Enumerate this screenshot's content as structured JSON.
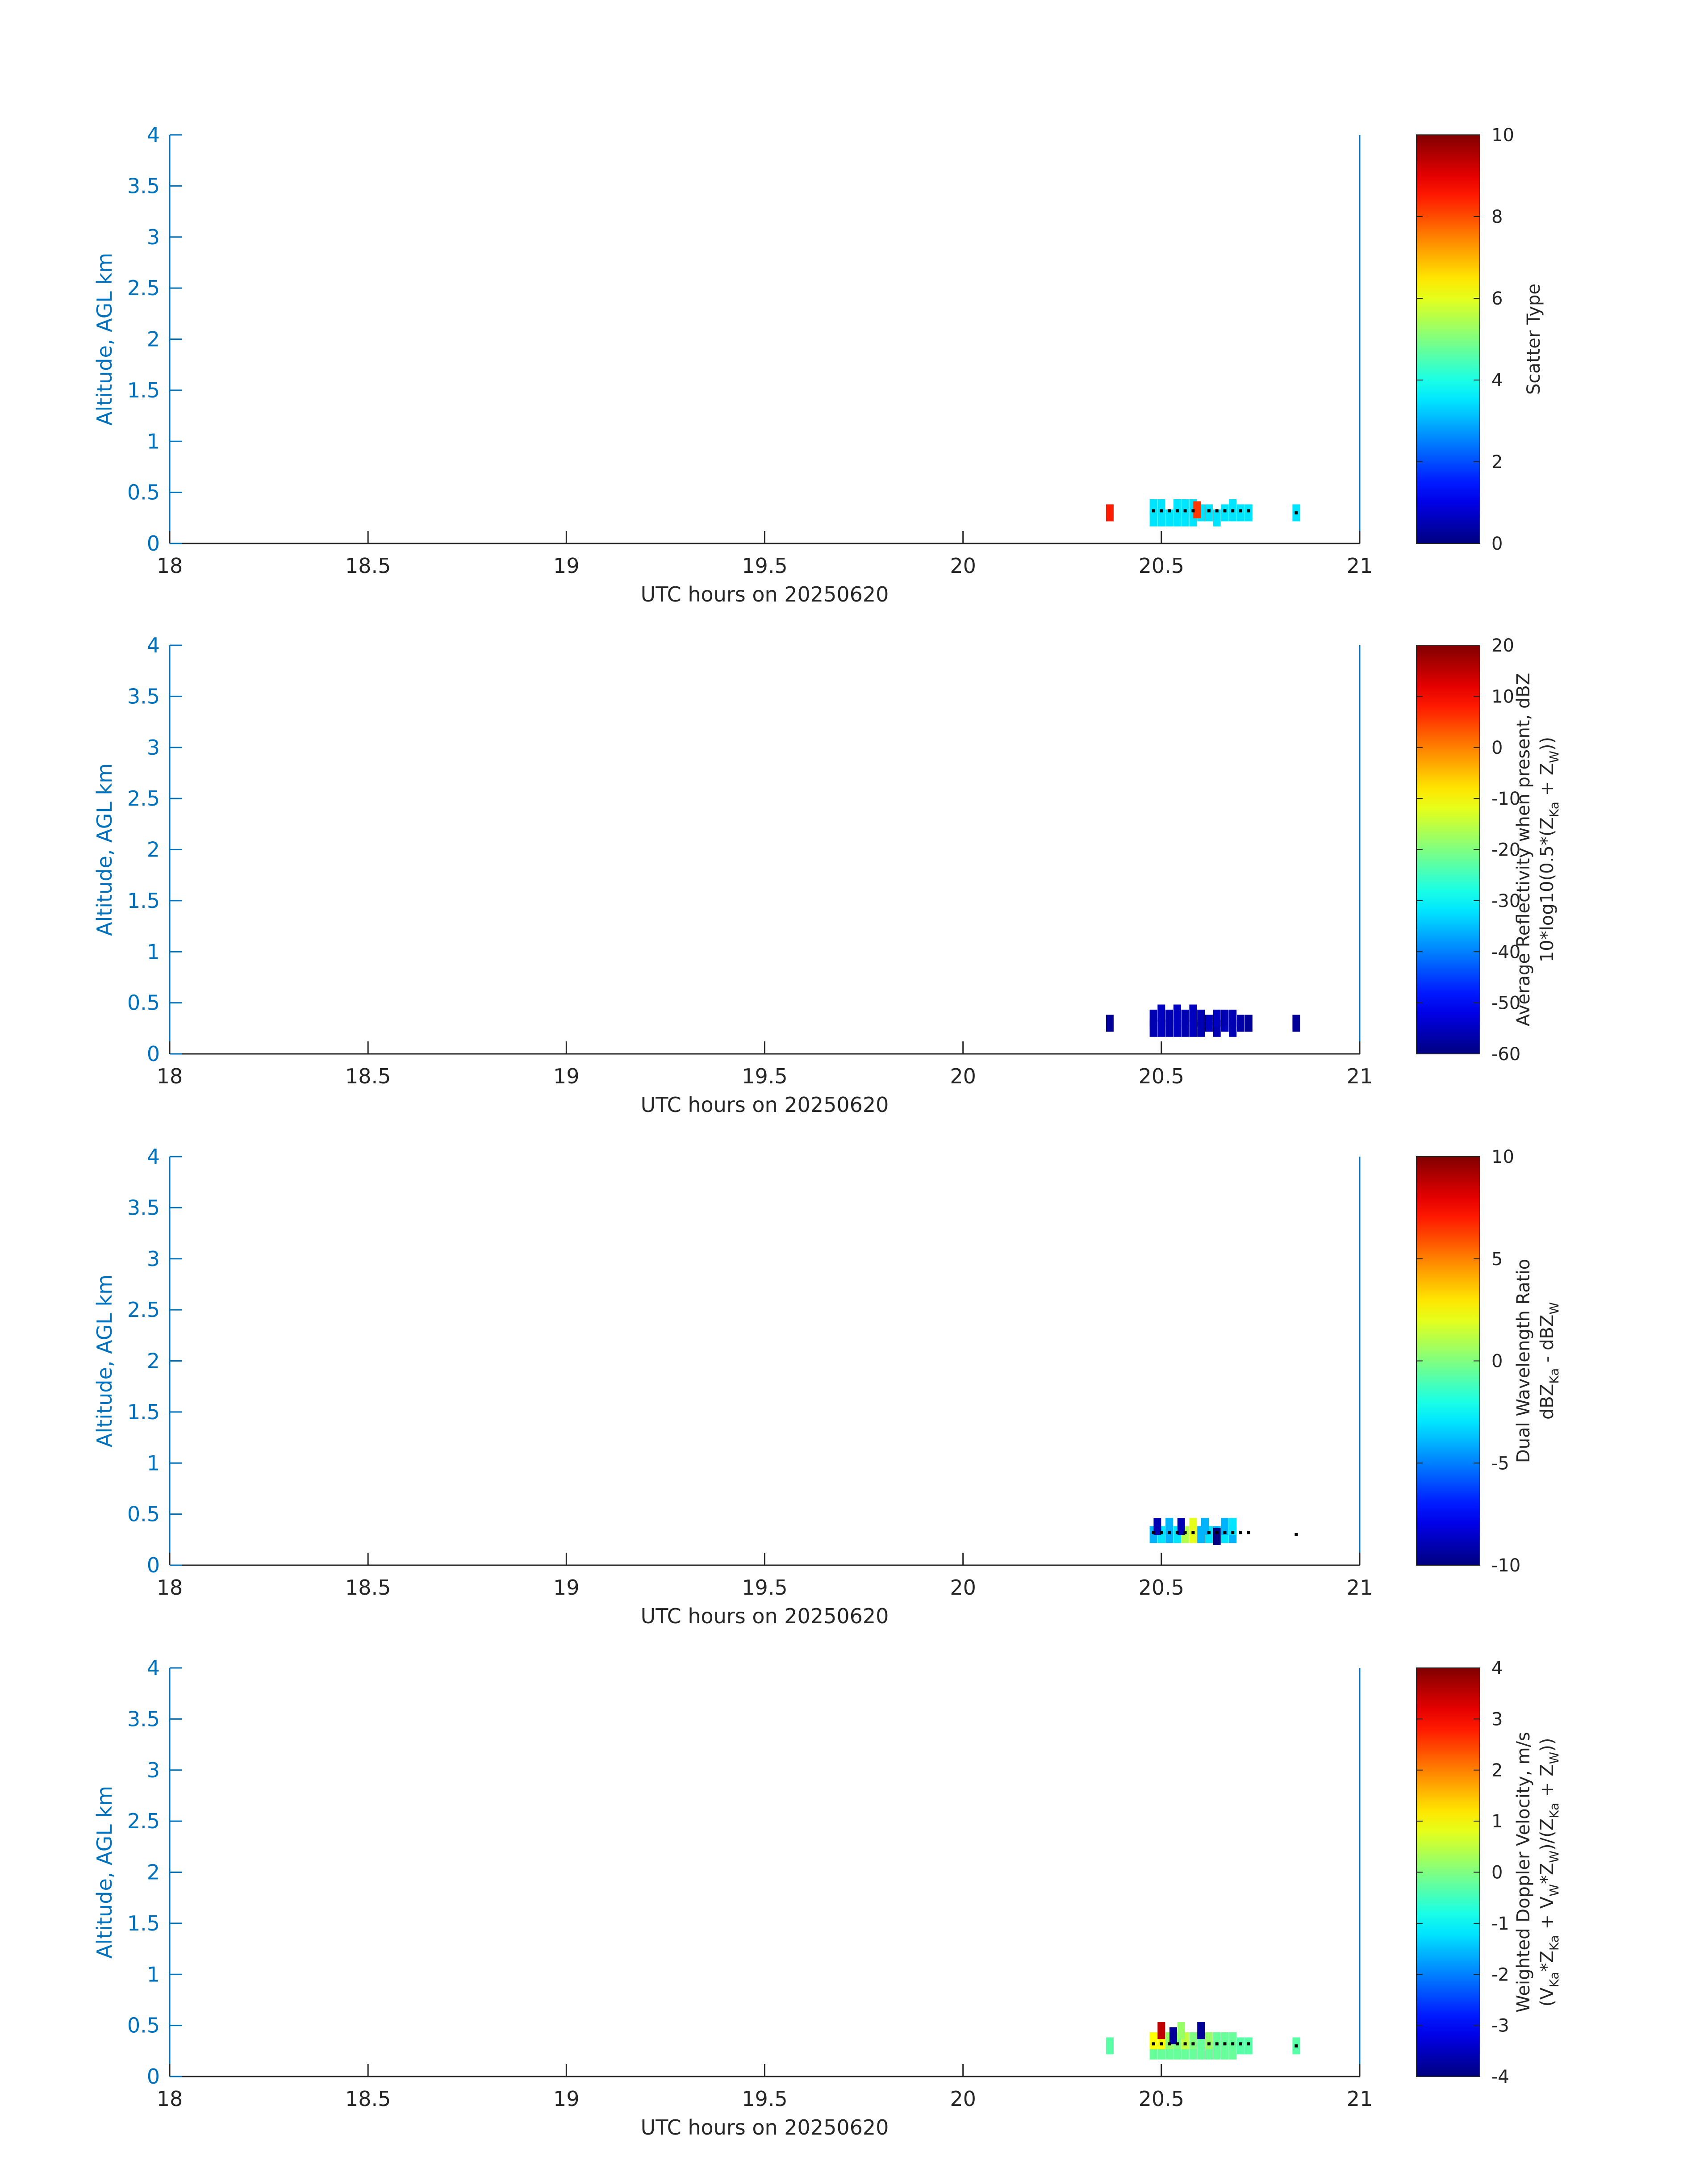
{
  "figure": {
    "colormap": "jet",
    "axis_color": "#0072bd",
    "text_color": "#262626",
    "marker_color": "#000000"
  },
  "chart_data": [
    {
      "type": "heatmap",
      "xlabel": "UTC hours on 20250620",
      "ylabel": "Altitude, AGL km",
      "xlim": [
        18,
        21
      ],
      "ylim": [
        0,
        4
      ],
      "xticks": [
        "18",
        "18.5",
        "19",
        "19.5",
        "20",
        "20.5",
        "21"
      ],
      "yticks": [
        "0",
        "0.5",
        "1",
        "1.5",
        "2",
        "2.5",
        "3",
        "3.5",
        "4"
      ],
      "colorbar": {
        "label_lines": [
          "Scatter Type"
        ],
        "clim": [
          0,
          10
        ],
        "ticks": [
          "0",
          "2",
          "4",
          "6",
          "8",
          "10"
        ]
      },
      "cells": [
        {
          "x": 20.37,
          "y": 0.3,
          "v": 8.5
        },
        {
          "x": 20.48,
          "y": 0.25,
          "v": 3.5
        },
        {
          "x": 20.5,
          "y": 0.25,
          "v": 3.5
        },
        {
          "x": 20.52,
          "y": 0.25,
          "v": 3.5
        },
        {
          "x": 20.54,
          "y": 0.25,
          "v": 3.5
        },
        {
          "x": 20.56,
          "y": 0.25,
          "v": 3.5
        },
        {
          "x": 20.58,
          "y": 0.25,
          "v": 3.5
        },
        {
          "x": 20.6,
          "y": 0.3,
          "v": 3.5
        },
        {
          "x": 20.62,
          "y": 0.3,
          "v": 3.5
        },
        {
          "x": 20.64,
          "y": 0.25,
          "v": 3.5
        },
        {
          "x": 20.66,
          "y": 0.3,
          "v": 3.5
        },
        {
          "x": 20.68,
          "y": 0.3,
          "v": 3.5
        },
        {
          "x": 20.7,
          "y": 0.3,
          "v": 3.5
        },
        {
          "x": 20.72,
          "y": 0.3,
          "v": 3.5
        },
        {
          "x": 20.48,
          "y": 0.35,
          "v": 3.5
        },
        {
          "x": 20.5,
          "y": 0.35,
          "v": 3.5
        },
        {
          "x": 20.54,
          "y": 0.35,
          "v": 3.5
        },
        {
          "x": 20.56,
          "y": 0.35,
          "v": 3.5
        },
        {
          "x": 20.58,
          "y": 0.35,
          "v": 3.5
        },
        {
          "x": 20.68,
          "y": 0.35,
          "v": 3.5
        },
        {
          "x": 20.59,
          "y": 0.33,
          "v": 8.2
        },
        {
          "x": 20.84,
          "y": 0.3,
          "v": 3.5
        }
      ],
      "markers": [
        {
          "x": 20.48,
          "y": 0.32
        },
        {
          "x": 20.5,
          "y": 0.32
        },
        {
          "x": 20.52,
          "y": 0.32
        },
        {
          "x": 20.54,
          "y": 0.32
        },
        {
          "x": 20.56,
          "y": 0.32
        },
        {
          "x": 20.58,
          "y": 0.32
        },
        {
          "x": 20.62,
          "y": 0.32
        },
        {
          "x": 20.64,
          "y": 0.32
        },
        {
          "x": 20.66,
          "y": 0.32
        },
        {
          "x": 20.68,
          "y": 0.32
        },
        {
          "x": 20.7,
          "y": 0.32
        },
        {
          "x": 20.72,
          "y": 0.32
        },
        {
          "x": 20.84,
          "y": 0.3
        }
      ]
    },
    {
      "type": "heatmap",
      "xlabel": "UTC hours on 20250620",
      "ylabel": "Altitude, AGL km",
      "xlim": [
        18,
        21
      ],
      "ylim": [
        0,
        4
      ],
      "xticks": [
        "18",
        "18.5",
        "19",
        "19.5",
        "20",
        "20.5",
        "21"
      ],
      "yticks": [
        "0",
        "0.5",
        "1",
        "1.5",
        "2",
        "2.5",
        "3",
        "3.5",
        "4"
      ],
      "colorbar": {
        "label_lines": [
          "Average Reflectivity when present, dBZ",
          "10*log10(0.5*(Z",
          "Ka",
          " + Z",
          "W",
          "))"
        ],
        "clim": [
          -60,
          20
        ],
        "ticks": [
          "-60",
          "-50",
          "-40",
          "-30",
          "-20",
          "-10",
          "0",
          "10",
          "20"
        ]
      },
      "cells": [
        {
          "x": 20.37,
          "y": 0.3,
          "v": -58
        },
        {
          "x": 20.48,
          "y": 0.25,
          "v": -56
        },
        {
          "x": 20.5,
          "y": 0.25,
          "v": -55
        },
        {
          "x": 20.52,
          "y": 0.25,
          "v": -56
        },
        {
          "x": 20.54,
          "y": 0.25,
          "v": -55
        },
        {
          "x": 20.56,
          "y": 0.25,
          "v": -56
        },
        {
          "x": 20.58,
          "y": 0.25,
          "v": -55
        },
        {
          "x": 20.6,
          "y": 0.25,
          "v": -56
        },
        {
          "x": 20.62,
          "y": 0.3,
          "v": -55
        },
        {
          "x": 20.64,
          "y": 0.25,
          "v": -56
        },
        {
          "x": 20.66,
          "y": 0.3,
          "v": -55
        },
        {
          "x": 20.68,
          "y": 0.25,
          "v": -56
        },
        {
          "x": 20.7,
          "y": 0.3,
          "v": -57
        },
        {
          "x": 20.72,
          "y": 0.3,
          "v": -58
        },
        {
          "x": 20.48,
          "y": 0.35,
          "v": -56
        },
        {
          "x": 20.5,
          "y": 0.4,
          "v": -55
        },
        {
          "x": 20.52,
          "y": 0.35,
          "v": -56
        },
        {
          "x": 20.54,
          "y": 0.4,
          "v": -55
        },
        {
          "x": 20.56,
          "y": 0.35,
          "v": -56
        },
        {
          "x": 20.58,
          "y": 0.4,
          "v": -55
        },
        {
          "x": 20.6,
          "y": 0.35,
          "v": -56
        },
        {
          "x": 20.64,
          "y": 0.35,
          "v": -55
        },
        {
          "x": 20.66,
          "y": 0.35,
          "v": -56
        },
        {
          "x": 20.68,
          "y": 0.35,
          "v": -56
        },
        {
          "x": 20.84,
          "y": 0.3,
          "v": -58
        }
      ],
      "markers": []
    },
    {
      "type": "heatmap",
      "xlabel": "UTC hours on 20250620",
      "ylabel": "Altitude, AGL km",
      "xlim": [
        18,
        21
      ],
      "ylim": [
        0,
        4
      ],
      "xticks": [
        "18",
        "18.5",
        "19",
        "19.5",
        "20",
        "20.5",
        "21"
      ],
      "yticks": [
        "0",
        "0.5",
        "1",
        "1.5",
        "2",
        "2.5",
        "3",
        "3.5",
        "4"
      ],
      "colorbar": {
        "label_lines": [
          "Dual Wavelength Ratio",
          "dBZ",
          "Ka",
          " - dBZ",
          "W"
        ],
        "clim": [
          -10,
          10
        ],
        "ticks": [
          "-10",
          "-5",
          "0",
          "5",
          "10"
        ]
      },
      "cells": [
        {
          "x": 20.48,
          "y": 0.3,
          "v": -4
        },
        {
          "x": 20.5,
          "y": 0.3,
          "v": -3
        },
        {
          "x": 20.52,
          "y": 0.3,
          "v": -4
        },
        {
          "x": 20.54,
          "y": 0.3,
          "v": -3
        },
        {
          "x": 20.56,
          "y": 0.3,
          "v": 1
        },
        {
          "x": 20.58,
          "y": 0.3,
          "v": 2
        },
        {
          "x": 20.6,
          "y": 0.3,
          "v": -4
        },
        {
          "x": 20.62,
          "y": 0.3,
          "v": -3
        },
        {
          "x": 20.64,
          "y": 0.3,
          "v": -4
        },
        {
          "x": 20.66,
          "y": 0.3,
          "v": -3
        },
        {
          "x": 20.68,
          "y": 0.3,
          "v": -4
        },
        {
          "x": 20.49,
          "y": 0.38,
          "v": -9
        },
        {
          "x": 20.52,
          "y": 0.38,
          "v": -4
        },
        {
          "x": 20.55,
          "y": 0.38,
          "v": -9
        },
        {
          "x": 20.58,
          "y": 0.38,
          "v": 2
        },
        {
          "x": 20.61,
          "y": 0.38,
          "v": -4
        },
        {
          "x": 20.64,
          "y": 0.28,
          "v": -10
        },
        {
          "x": 20.66,
          "y": 0.38,
          "v": -4
        },
        {
          "x": 20.68,
          "y": 0.38,
          "v": -3
        }
      ],
      "markers": [
        {
          "x": 20.48,
          "y": 0.32
        },
        {
          "x": 20.5,
          "y": 0.32
        },
        {
          "x": 20.52,
          "y": 0.32
        },
        {
          "x": 20.54,
          "y": 0.32
        },
        {
          "x": 20.56,
          "y": 0.32
        },
        {
          "x": 20.58,
          "y": 0.32
        },
        {
          "x": 20.62,
          "y": 0.32
        },
        {
          "x": 20.64,
          "y": 0.32
        },
        {
          "x": 20.66,
          "y": 0.32
        },
        {
          "x": 20.68,
          "y": 0.32
        },
        {
          "x": 20.7,
          "y": 0.32
        },
        {
          "x": 20.72,
          "y": 0.32
        },
        {
          "x": 20.84,
          "y": 0.3
        }
      ]
    },
    {
      "type": "heatmap",
      "xlabel": "UTC hours on 20250620",
      "ylabel": "Altitude, AGL km",
      "xlim": [
        18,
        21
      ],
      "ylim": [
        0,
        4
      ],
      "xticks": [
        "18",
        "18.5",
        "19",
        "19.5",
        "20",
        "20.5",
        "21"
      ],
      "yticks": [
        "0",
        "0.5",
        "1",
        "1.5",
        "2",
        "2.5",
        "3",
        "3.5",
        "4"
      ],
      "colorbar": {
        "label_lines": [
          "Weighted Doppler Velocity, m/s",
          "(V",
          "Ka",
          "*Z",
          "Ka",
          " + V",
          "W",
          "*Z",
          "W",
          ")/(Z",
          "Ka",
          " + Z",
          "W",
          "))"
        ],
        "clim": [
          -4,
          4
        ],
        "ticks": [
          "-4",
          "-3",
          "-2",
          "-1",
          "0",
          "1",
          "2",
          "3",
          "4"
        ]
      },
      "cells": [
        {
          "x": 20.37,
          "y": 0.3,
          "v": -0.3
        },
        {
          "x": 20.48,
          "y": 0.25,
          "v": -0.2
        },
        {
          "x": 20.5,
          "y": 0.25,
          "v": -0.2
        },
        {
          "x": 20.52,
          "y": 0.25,
          "v": -0.2
        },
        {
          "x": 20.54,
          "y": 0.25,
          "v": -0.2
        },
        {
          "x": 20.56,
          "y": 0.25,
          "v": -0.2
        },
        {
          "x": 20.58,
          "y": 0.25,
          "v": -0.2
        },
        {
          "x": 20.6,
          "y": 0.25,
          "v": -0.2
        },
        {
          "x": 20.62,
          "y": 0.25,
          "v": -0.2
        },
        {
          "x": 20.64,
          "y": 0.25,
          "v": -0.2
        },
        {
          "x": 20.66,
          "y": 0.25,
          "v": -0.2
        },
        {
          "x": 20.68,
          "y": 0.25,
          "v": -0.2
        },
        {
          "x": 20.7,
          "y": 0.3,
          "v": -0.3
        },
        {
          "x": 20.72,
          "y": 0.3,
          "v": -0.3
        },
        {
          "x": 20.48,
          "y": 0.35,
          "v": 1.0
        },
        {
          "x": 20.5,
          "y": 0.35,
          "v": 1.0
        },
        {
          "x": 20.52,
          "y": 0.35,
          "v": 0.2
        },
        {
          "x": 20.54,
          "y": 0.35,
          "v": 0.0
        },
        {
          "x": 20.56,
          "y": 0.35,
          "v": 0.5
        },
        {
          "x": 20.58,
          "y": 0.35,
          "v": 0.0
        },
        {
          "x": 20.6,
          "y": 0.35,
          "v": -0.2
        },
        {
          "x": 20.62,
          "y": 0.35,
          "v": 0.2
        },
        {
          "x": 20.64,
          "y": 0.35,
          "v": -0.2
        },
        {
          "x": 20.66,
          "y": 0.35,
          "v": -0.2
        },
        {
          "x": 20.68,
          "y": 0.35,
          "v": -0.2
        },
        {
          "x": 20.5,
          "y": 0.45,
          "v": 3.5
        },
        {
          "x": 20.53,
          "y": 0.4,
          "v": -3.8
        },
        {
          "x": 20.55,
          "y": 0.45,
          "v": 0.2
        },
        {
          "x": 20.6,
          "y": 0.45,
          "v": -3.8
        },
        {
          "x": 20.84,
          "y": 0.3,
          "v": -0.3
        }
      ],
      "markers": [
        {
          "x": 20.48,
          "y": 0.32
        },
        {
          "x": 20.5,
          "y": 0.32
        },
        {
          "x": 20.52,
          "y": 0.32
        },
        {
          "x": 20.54,
          "y": 0.32
        },
        {
          "x": 20.56,
          "y": 0.32
        },
        {
          "x": 20.58,
          "y": 0.32
        },
        {
          "x": 20.62,
          "y": 0.32
        },
        {
          "x": 20.64,
          "y": 0.32
        },
        {
          "x": 20.66,
          "y": 0.32
        },
        {
          "x": 20.68,
          "y": 0.32
        },
        {
          "x": 20.7,
          "y": 0.32
        },
        {
          "x": 20.72,
          "y": 0.32
        },
        {
          "x": 20.84,
          "y": 0.3
        }
      ]
    }
  ]
}
